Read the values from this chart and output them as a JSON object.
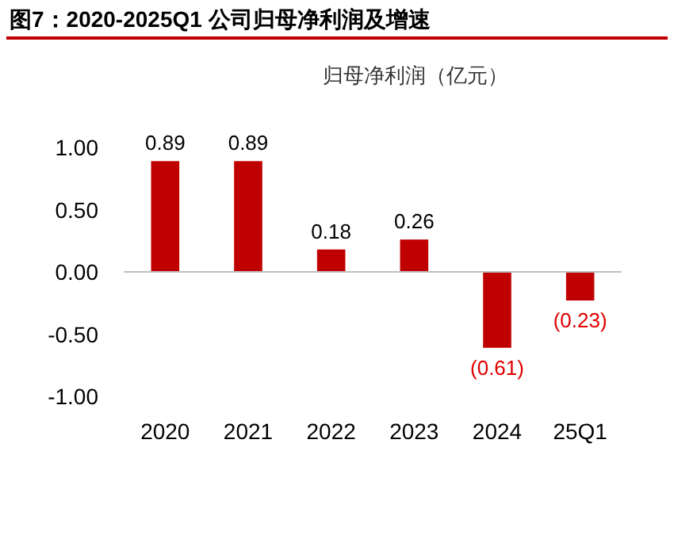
{
  "chart_data": {
    "type": "bar",
    "title": "图7：2020-2025Q1 公司归母净利润及增速",
    "subtitle": "归母净利润（亿元）",
    "categories": [
      "2020",
      "2021",
      "2022",
      "2023",
      "2024",
      "25Q1"
    ],
    "values": [
      0.89,
      0.89,
      0.18,
      0.26,
      -0.61,
      -0.23
    ],
    "value_labels": [
      "0.89",
      "0.89",
      "0.18",
      "0.26",
      "(0.61)",
      "(0.23)"
    ],
    "color": "#c00000",
    "ylim": [
      -1,
      1
    ],
    "yticks": [
      {
        "value": 1,
        "label": "1.00"
      },
      {
        "value": 0.5,
        "label": "0.50"
      },
      {
        "value": 0,
        "label": "0.00"
      },
      {
        "value": -0.5,
        "label": "-0.50"
      },
      {
        "value": -1,
        "label": "-1.00"
      }
    ],
    "ref_lines": [
      {
        "axis": "y",
        "value": 0,
        "color": "#bfbfbf"
      }
    ]
  }
}
